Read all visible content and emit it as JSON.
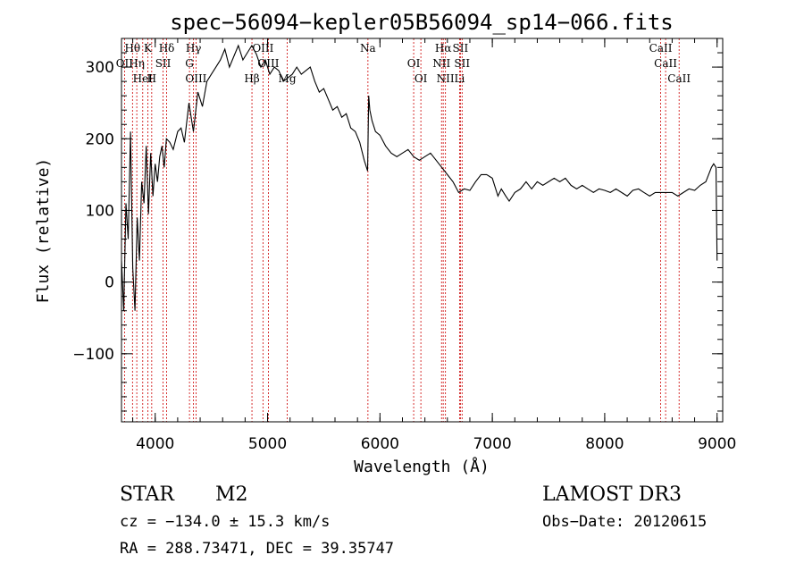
{
  "chart_data": {
    "type": "line",
    "title": "spec−56094−kepler05B56094_sp14−066.fits",
    "xlabel": "Wavelength (Å)",
    "ylabel": "Flux (relative)",
    "xlim": [
      3700,
      9050
    ],
    "ylim": [
      -195,
      340
    ],
    "xticks": [
      4000,
      5000,
      6000,
      7000,
      8000,
      9000
    ],
    "xtick_labels": [
      "4000",
      "5000",
      "6000",
      "7000",
      "8000",
      "9000"
    ],
    "yticks": [
      -100,
      0,
      100,
      200,
      300
    ],
    "ytick_labels": [
      "−100",
      "0",
      "100",
      "200",
      "300"
    ],
    "series": [
      {
        "x": [
          3700,
          3720,
          3740,
          3760,
          3780,
          3800,
          3820,
          3840,
          3860,
          3880,
          3900,
          3920,
          3940,
          3960,
          3980,
          4000,
          4020,
          4040,
          4060,
          4080,
          4100,
          4130,
          4160,
          4200,
          4230,
          4260,
          4300,
          4340,
          4380,
          4420,
          4460,
          4500,
          4540,
          4580,
          4620,
          4660,
          4700,
          4740,
          4780,
          4820,
          4860,
          4900,
          4940,
          4980,
          5020,
          5060,
          5100,
          5140,
          5180,
          5220,
          5260,
          5300,
          5340,
          5380,
          5420,
          5460,
          5500,
          5540,
          5580,
          5620,
          5660,
          5700,
          5740,
          5780,
          5820,
          5860,
          5890,
          5900,
          5910,
          5930,
          5960,
          6000,
          6050,
          6100,
          6150,
          6200,
          6250,
          6300,
          6350,
          6400,
          6450,
          6500,
          6550,
          6600,
          6650,
          6700,
          6750,
          6800,
          6850,
          6900,
          6950,
          7000,
          7050,
          7080,
          7120,
          7150,
          7200,
          7250,
          7300,
          7350,
          7400,
          7450,
          7500,
          7550,
          7600,
          7650,
          7700,
          7750,
          7800,
          7850,
          7900,
          7950,
          8000,
          8050,
          8100,
          8150,
          8200,
          8250,
          8300,
          8350,
          8400,
          8450,
          8500,
          8550,
          8600,
          8650,
          8700,
          8750,
          8800,
          8850,
          8900,
          8950,
          8970,
          8990,
          9000
        ],
        "y": [
          30,
          -40,
          110,
          60,
          210,
          20,
          -40,
          90,
          30,
          140,
          110,
          190,
          95,
          180,
          120,
          165,
          140,
          175,
          190,
          160,
          200,
          195,
          185,
          210,
          215,
          195,
          250,
          210,
          265,
          245,
          280,
          290,
          300,
          310,
          325,
          300,
          315,
          330,
          310,
          320,
          330,
          318,
          300,
          310,
          290,
          300,
          295,
          280,
          285,
          290,
          300,
          290,
          295,
          300,
          280,
          265,
          270,
          255,
          240,
          245,
          230,
          235,
          215,
          210,
          195,
          170,
          155,
          260,
          240,
          225,
          210,
          205,
          190,
          180,
          175,
          180,
          185,
          175,
          170,
          175,
          180,
          170,
          160,
          150,
          140,
          125,
          130,
          128,
          140,
          150,
          150,
          145,
          120,
          130,
          120,
          113,
          125,
          130,
          140,
          130,
          140,
          135,
          140,
          145,
          140,
          145,
          135,
          130,
          135,
          130,
          125,
          130,
          128,
          125,
          130,
          125,
          120,
          128,
          130,
          125,
          120,
          125,
          125,
          125,
          125,
          120,
          125,
          130,
          128,
          135,
          140,
          160,
          165,
          160,
          30
        ]
      }
    ],
    "emission_lines": [
      {
        "name": "Hθ",
        "wave": 3798
      },
      {
        "name": "Hη",
        "wave": 3836
      },
      {
        "name": "HeI",
        "wave": 3889
      },
      {
        "name": "K",
        "wave": 3934
      },
      {
        "name": "SII",
        "wave": 4070
      },
      {
        "name": "H",
        "wave": 3969
      },
      {
        "name": "Hδ",
        "wave": 4102
      },
      {
        "name": "OII",
        "wave": 3727
      },
      {
        "name": "OIII",
        "wave": 4363
      },
      {
        "name": "Hγ",
        "wave": 4341
      },
      {
        "name": "G",
        "wave": 4305
      },
      {
        "name": "Hβ",
        "wave": 4861
      },
      {
        "name": "OIII",
        "wave": 4959
      },
      {
        "name": "OIII",
        "wave": 5007
      },
      {
        "name": "Mg",
        "wave": 5175
      },
      {
        "name": "Na",
        "wave": 5893
      },
      {
        "name": "OI",
        "wave": 6300
      },
      {
        "name": "OI",
        "wave": 6364
      },
      {
        "name": "Hα",
        "wave": 6563
      },
      {
        "name": "NII",
        "wave": 6548
      },
      {
        "name": "NII",
        "wave": 6583
      },
      {
        "name": "SII",
        "wave": 6716
      },
      {
        "name": "SII",
        "wave": 6731
      },
      {
        "name": "Li",
        "wave": 6708
      },
      {
        "name": "CaII",
        "wave": 8498
      },
      {
        "name": "CaII",
        "wave": 8542
      },
      {
        "name": "CaII",
        "wave": 8662
      }
    ],
    "grid": false,
    "line_color": "#000000",
    "marker_color": "#cc0000"
  },
  "info": {
    "object_class": "STAR",
    "subclass": "M2",
    "survey": "LAMOST DR3",
    "cz": "cz = −134.0 ± 15.3 km/s",
    "obs_date": "Obs−Date: 20120615",
    "coords": "RA = 288.73471, DEC =  39.35747"
  }
}
